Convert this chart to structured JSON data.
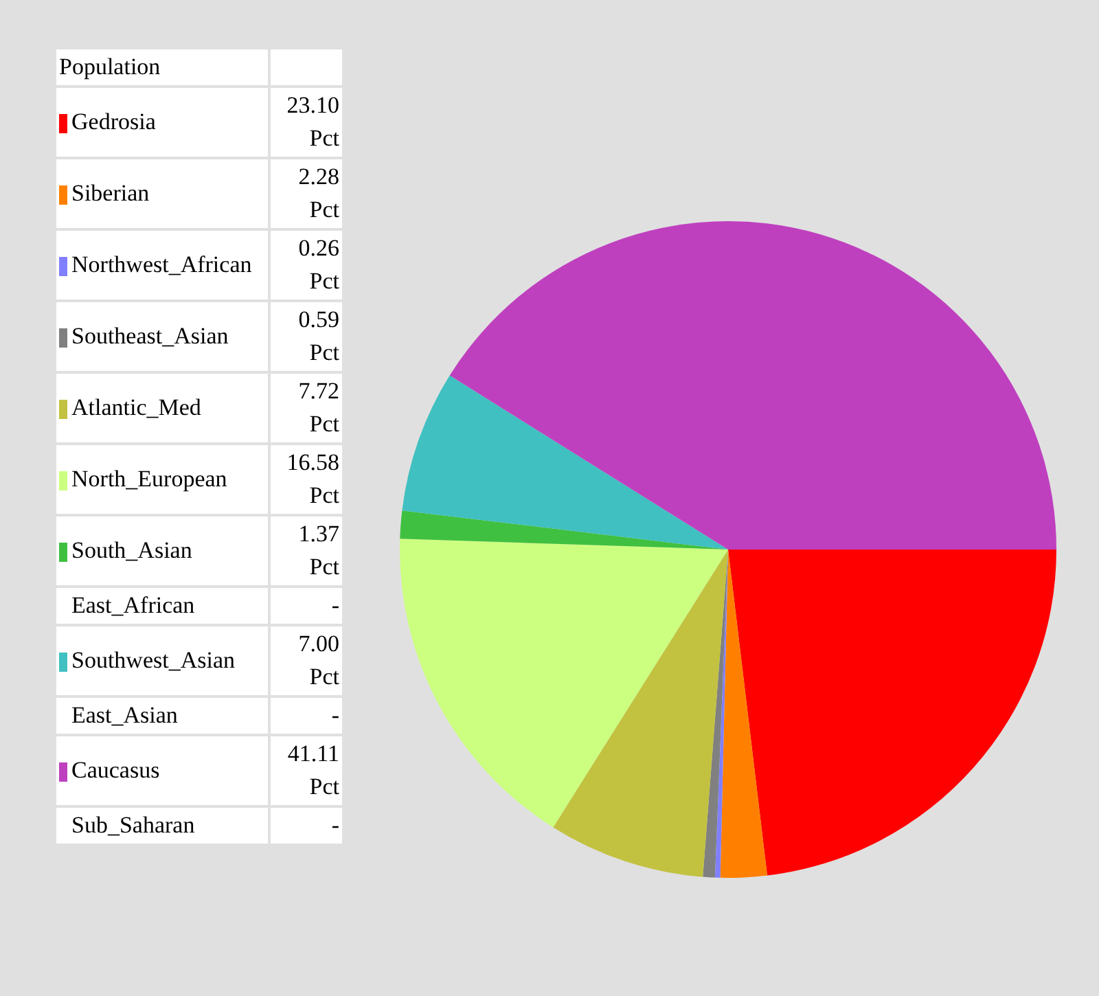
{
  "chart_data": {
    "type": "pie",
    "legend_title": "Population",
    "legend": "left",
    "data_labels": true,
    "categories": [
      "Gedrosia",
      "Siberian",
      "Northwest_African",
      "Southeast_Asian",
      "Atlantic_Med",
      "North_European",
      "South_Asian",
      "East_African",
      "Southwest_Asian",
      "East_Asian",
      "Caucasus",
      "Sub_Saharan"
    ],
    "values": [
      23.1,
      2.28,
      0.26,
      0.59,
      7.72,
      16.58,
      1.37,
      null,
      7.0,
      null,
      41.11,
      null
    ],
    "value_labels": [
      "23.10 Pct",
      "2.28 Pct",
      "0.26 Pct",
      "0.59 Pct",
      "7.72 Pct",
      "16.58 Pct",
      "1.37 Pct",
      "-",
      "7.00 Pct",
      "-",
      "41.11 Pct",
      "-"
    ],
    "colors": [
      "#ff0000",
      "#ff8000",
      "#8080ff",
      "#808080",
      "#c2c240",
      "#ccff80",
      "#40c040",
      null,
      "#40c0c0",
      null,
      "#bf40bf",
      null
    ]
  }
}
